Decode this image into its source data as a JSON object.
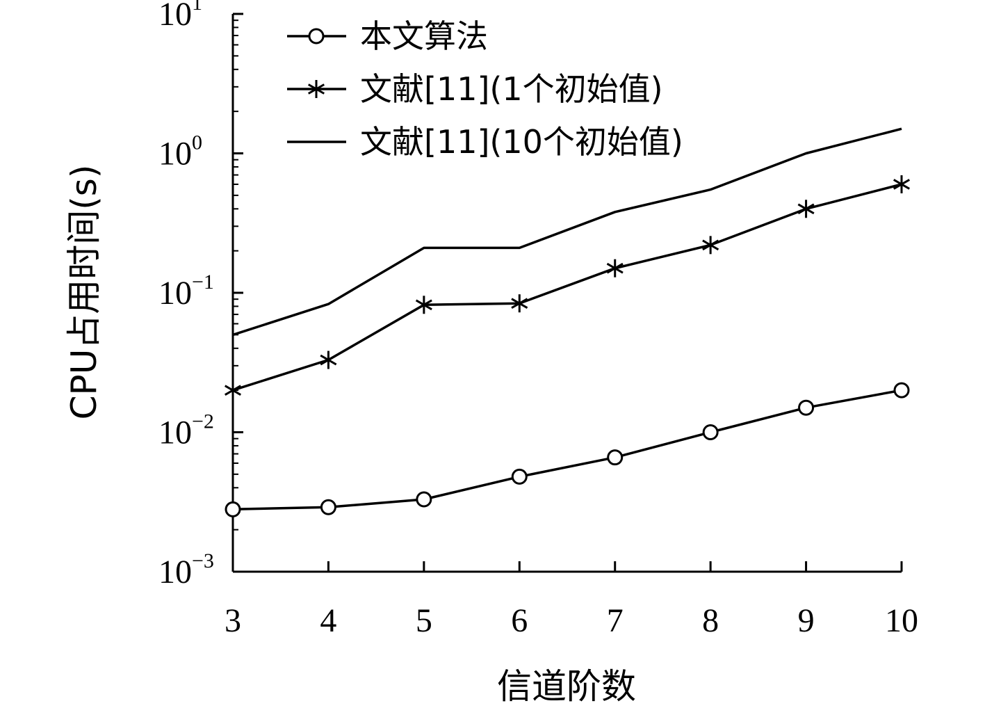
{
  "chart_data": {
    "type": "line",
    "xlabel": "信道阶数",
    "ylabel": "CPU占用时间(s)",
    "y_scale": "log",
    "x": [
      3,
      4,
      5,
      6,
      7,
      8,
      9,
      10
    ],
    "xlim": [
      3,
      10
    ],
    "ylim": [
      0.001,
      10
    ],
    "x_ticks": [
      "3",
      "4",
      "5",
      "6",
      "7",
      "8",
      "9",
      "10"
    ],
    "y_ticks": [
      {
        "base": "10",
        "exp": "−3",
        "value": 0.001
      },
      {
        "base": "10",
        "exp": "−2",
        "value": 0.01
      },
      {
        "base": "10",
        "exp": "−1",
        "value": 0.1
      },
      {
        "base": "10",
        "exp": "0",
        "value": 1
      },
      {
        "base": "10",
        "exp": "1",
        "value": 10
      }
    ],
    "grid": false,
    "legend_position": "top-left",
    "series": [
      {
        "name": "本文算法",
        "marker": "circle",
        "values": [
          0.0028,
          0.0029,
          0.0033,
          0.0048,
          0.0066,
          0.01,
          0.015,
          0.02
        ]
      },
      {
        "name": "文献[11](1个初始值)",
        "marker": "asterisk",
        "values": [
          0.02,
          0.033,
          0.082,
          0.084,
          0.15,
          0.22,
          0.4,
          0.6
        ]
      },
      {
        "name": "文献[11](10个初始值)",
        "marker": "none",
        "values": [
          0.05,
          0.083,
          0.21,
          0.21,
          0.38,
          0.55,
          1.0,
          1.5
        ]
      }
    ],
    "color": "#000000"
  }
}
